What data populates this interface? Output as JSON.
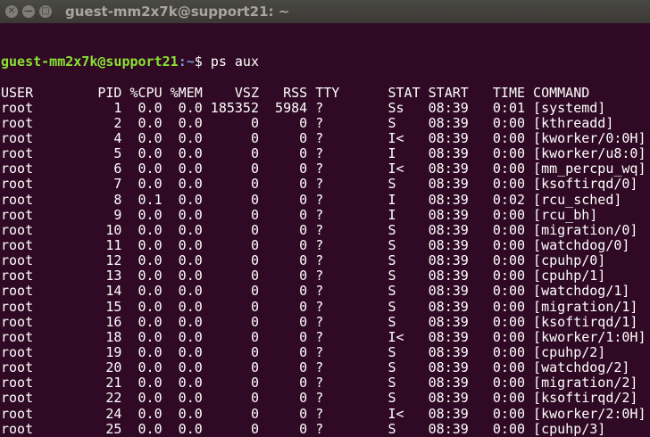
{
  "window": {
    "title": "guest-mm2x7k@support21: ~"
  },
  "prompt": {
    "user_host": "guest-mm2x7k@support21",
    "path": ":~",
    "symbol": "$ ",
    "command": "ps aux"
  },
  "colors": {
    "background": "#300a24",
    "prompt_user": "#8ae234",
    "prompt_path": "#729fcf",
    "text": "#ffffff"
  },
  "table": {
    "headers": [
      "USER",
      "PID",
      "%CPU",
      "%MEM",
      "VSZ",
      "RSS",
      "TTY",
      "STAT",
      "START",
      "TIME",
      "COMMAND"
    ],
    "rows": [
      [
        "root",
        "1",
        "0.0",
        "0.0",
        "185352",
        "5984",
        "?",
        "Ss",
        "08:39",
        "0:01",
        "[systemd]"
      ],
      [
        "root",
        "2",
        "0.0",
        "0.0",
        "0",
        "0",
        "?",
        "S",
        "08:39",
        "0:00",
        "[kthreadd]"
      ],
      [
        "root",
        "4",
        "0.0",
        "0.0",
        "0",
        "0",
        "?",
        "I<",
        "08:39",
        "0:00",
        "[kworker/0:0H]"
      ],
      [
        "root",
        "5",
        "0.0",
        "0.0",
        "0",
        "0",
        "?",
        "I",
        "08:39",
        "0:00",
        "[kworker/u8:0]"
      ],
      [
        "root",
        "6",
        "0.0",
        "0.0",
        "0",
        "0",
        "?",
        "I<",
        "08:39",
        "0:00",
        "[mm_percpu_wq]"
      ],
      [
        "root",
        "7",
        "0.0",
        "0.0",
        "0",
        "0",
        "?",
        "S",
        "08:39",
        "0:00",
        "[ksoftirqd/0]"
      ],
      [
        "root",
        "8",
        "0.1",
        "0.0",
        "0",
        "0",
        "?",
        "I",
        "08:39",
        "0:02",
        "[rcu_sched]"
      ],
      [
        "root",
        "9",
        "0.0",
        "0.0",
        "0",
        "0",
        "?",
        "I",
        "08:39",
        "0:00",
        "[rcu_bh]"
      ],
      [
        "root",
        "10",
        "0.0",
        "0.0",
        "0",
        "0",
        "?",
        "S",
        "08:39",
        "0:00",
        "[migration/0]"
      ],
      [
        "root",
        "11",
        "0.0",
        "0.0",
        "0",
        "0",
        "?",
        "S",
        "08:39",
        "0:00",
        "[watchdog/0]"
      ],
      [
        "root",
        "12",
        "0.0",
        "0.0",
        "0",
        "0",
        "?",
        "S",
        "08:39",
        "0:00",
        "[cpuhp/0]"
      ],
      [
        "root",
        "13",
        "0.0",
        "0.0",
        "0",
        "0",
        "?",
        "S",
        "08:39",
        "0:00",
        "[cpuhp/1]"
      ],
      [
        "root",
        "14",
        "0.0",
        "0.0",
        "0",
        "0",
        "?",
        "S",
        "08:39",
        "0:00",
        "[watchdog/1]"
      ],
      [
        "root",
        "15",
        "0.0",
        "0.0",
        "0",
        "0",
        "?",
        "S",
        "08:39",
        "0:00",
        "[migration/1]"
      ],
      [
        "root",
        "16",
        "0.0",
        "0.0",
        "0",
        "0",
        "?",
        "S",
        "08:39",
        "0:00",
        "[ksoftirqd/1]"
      ],
      [
        "root",
        "18",
        "0.0",
        "0.0",
        "0",
        "0",
        "?",
        "I<",
        "08:39",
        "0:00",
        "[kworker/1:0H]"
      ],
      [
        "root",
        "19",
        "0.0",
        "0.0",
        "0",
        "0",
        "?",
        "S",
        "08:39",
        "0:00",
        "[cpuhp/2]"
      ],
      [
        "root",
        "20",
        "0.0",
        "0.0",
        "0",
        "0",
        "?",
        "S",
        "08:39",
        "0:00",
        "[watchdog/2]"
      ],
      [
        "root",
        "21",
        "0.0",
        "0.0",
        "0",
        "0",
        "?",
        "S",
        "08:39",
        "0:00",
        "[migration/2]"
      ],
      [
        "root",
        "22",
        "0.0",
        "0.0",
        "0",
        "0",
        "?",
        "S",
        "08:39",
        "0:00",
        "[ksoftirqd/2]"
      ],
      [
        "root",
        "24",
        "0.0",
        "0.0",
        "0",
        "0",
        "?",
        "I<",
        "08:39",
        "0:00",
        "[kworker/2:0H]"
      ],
      [
        "root",
        "25",
        "0.0",
        "0.0",
        "0",
        "0",
        "?",
        "S",
        "08:39",
        "0:00",
        "[cpuhp/3]"
      ]
    ]
  }
}
